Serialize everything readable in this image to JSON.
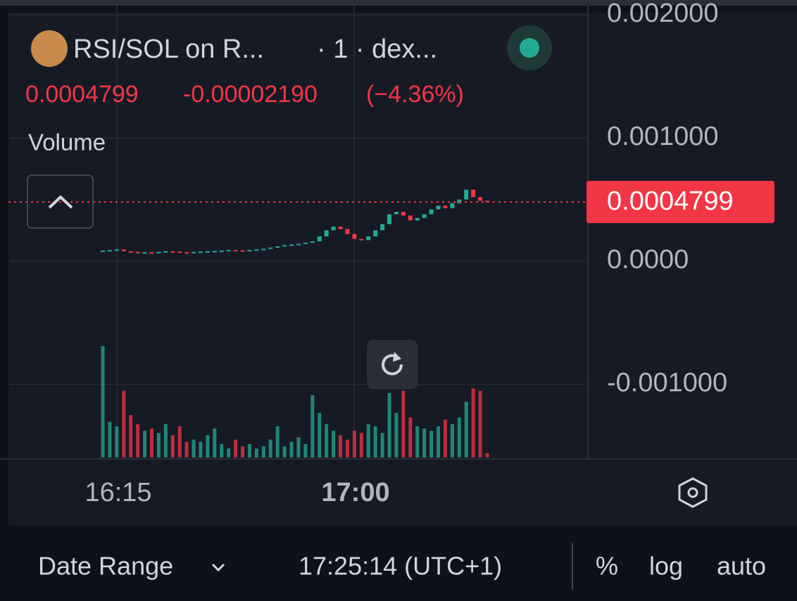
{
  "header": {
    "symbol": "RSI/SOL on R...",
    "interval": "· 1 · dex...",
    "change": "-0.00002190",
    "change_pct": "(−4.36%)",
    "indicator": "Volume"
  },
  "chart_data": {
    "type": "candlestick",
    "open": [
      8e-05,
      8.5e-05,
      9e-05,
      9.5e-05,
      8e-05,
      7.5e-05,
      7e-05,
      7.2e-05,
      6.8e-05,
      7.5e-05,
      8e-05,
      7.8e-05,
      7.2e-05,
      7e-05,
      7.4e-05,
      7.8e-05,
      8e-05,
      8.2e-05,
      8.5e-05,
      9e-05,
      8.8e-05,
      8.5e-05,
      9e-05,
      9.5e-05,
      0.0001,
      0.00011,
      0.00012,
      0.00013,
      0.000135,
      0.00014,
      0.00015,
      0.00016,
      0.0002,
      0.00025,
      0.00028,
      0.00026,
      0.00022,
      0.00018,
      0.00017,
      0.0002,
      0.00025,
      0.0003,
      0.00038,
      0.0004,
      0.00037,
      0.00033,
      0.00035,
      0.00038,
      0.00042,
      0.00045,
      0.00043,
      0.00047,
      0.0005,
      0.00058,
      0.00052,
      0.00049
    ],
    "close": [
      8.5e-05,
      9e-05,
      9.5e-05,
      8e-05,
      7.5e-05,
      7e-05,
      7.2e-05,
      6.8e-05,
      7.5e-05,
      8e-05,
      7.8e-05,
      7.2e-05,
      7e-05,
      7.4e-05,
      7.8e-05,
      8e-05,
      8.2e-05,
      8.5e-05,
      9e-05,
      8.8e-05,
      8.5e-05,
      9e-05,
      9.5e-05,
      0.0001,
      0.00011,
      0.00012,
      0.00013,
      0.000135,
      0.00014,
      0.00015,
      0.00016,
      0.0002,
      0.00025,
      0.00028,
      0.00026,
      0.00022,
      0.00018,
      0.00017,
      0.0002,
      0.00025,
      0.0003,
      0.00038,
      0.0004,
      0.00037,
      0.00033,
      0.00035,
      0.00038,
      0.00042,
      0.00045,
      0.00043,
      0.00047,
      0.0005,
      0.00058,
      0.00052,
      0.00049,
      0.0004799
    ],
    "volume": [
      100,
      32,
      28,
      60,
      38,
      30,
      24,
      26,
      22,
      30,
      20,
      28,
      14,
      16,
      14,
      20,
      26,
      12,
      8,
      16,
      10,
      12,
      8,
      10,
      16,
      28,
      10,
      14,
      18,
      12,
      56,
      40,
      30,
      24,
      20,
      16,
      24,
      22,
      30,
      28,
      22,
      58,
      40,
      60,
      36,
      28,
      26,
      24,
      28,
      34,
      30,
      36,
      50,
      62,
      60,
      4
    ],
    "up_color": "#22ab94",
    "down_color": "#f23645",
    "ylim": [
      -0.001594,
      0.002074
    ],
    "yticks": [
      {
        "value": 0.002,
        "label": "0.002000"
      },
      {
        "value": 0.001,
        "label": "0.001000"
      },
      {
        "value": 0,
        "label": "0.0000"
      },
      {
        "value": -0.001,
        "label": "-0.001000"
      }
    ],
    "last_price": {
      "value": 0.0004799,
      "label": "0.0004799"
    },
    "grid": true,
    "time_ticks": [
      "16:15",
      "17:00"
    ]
  },
  "toolbar": {
    "date_range": "Date Range",
    "clock": "17:25:14 (UTC+1)",
    "percent": "%",
    "log": "log",
    "auto": "auto"
  }
}
